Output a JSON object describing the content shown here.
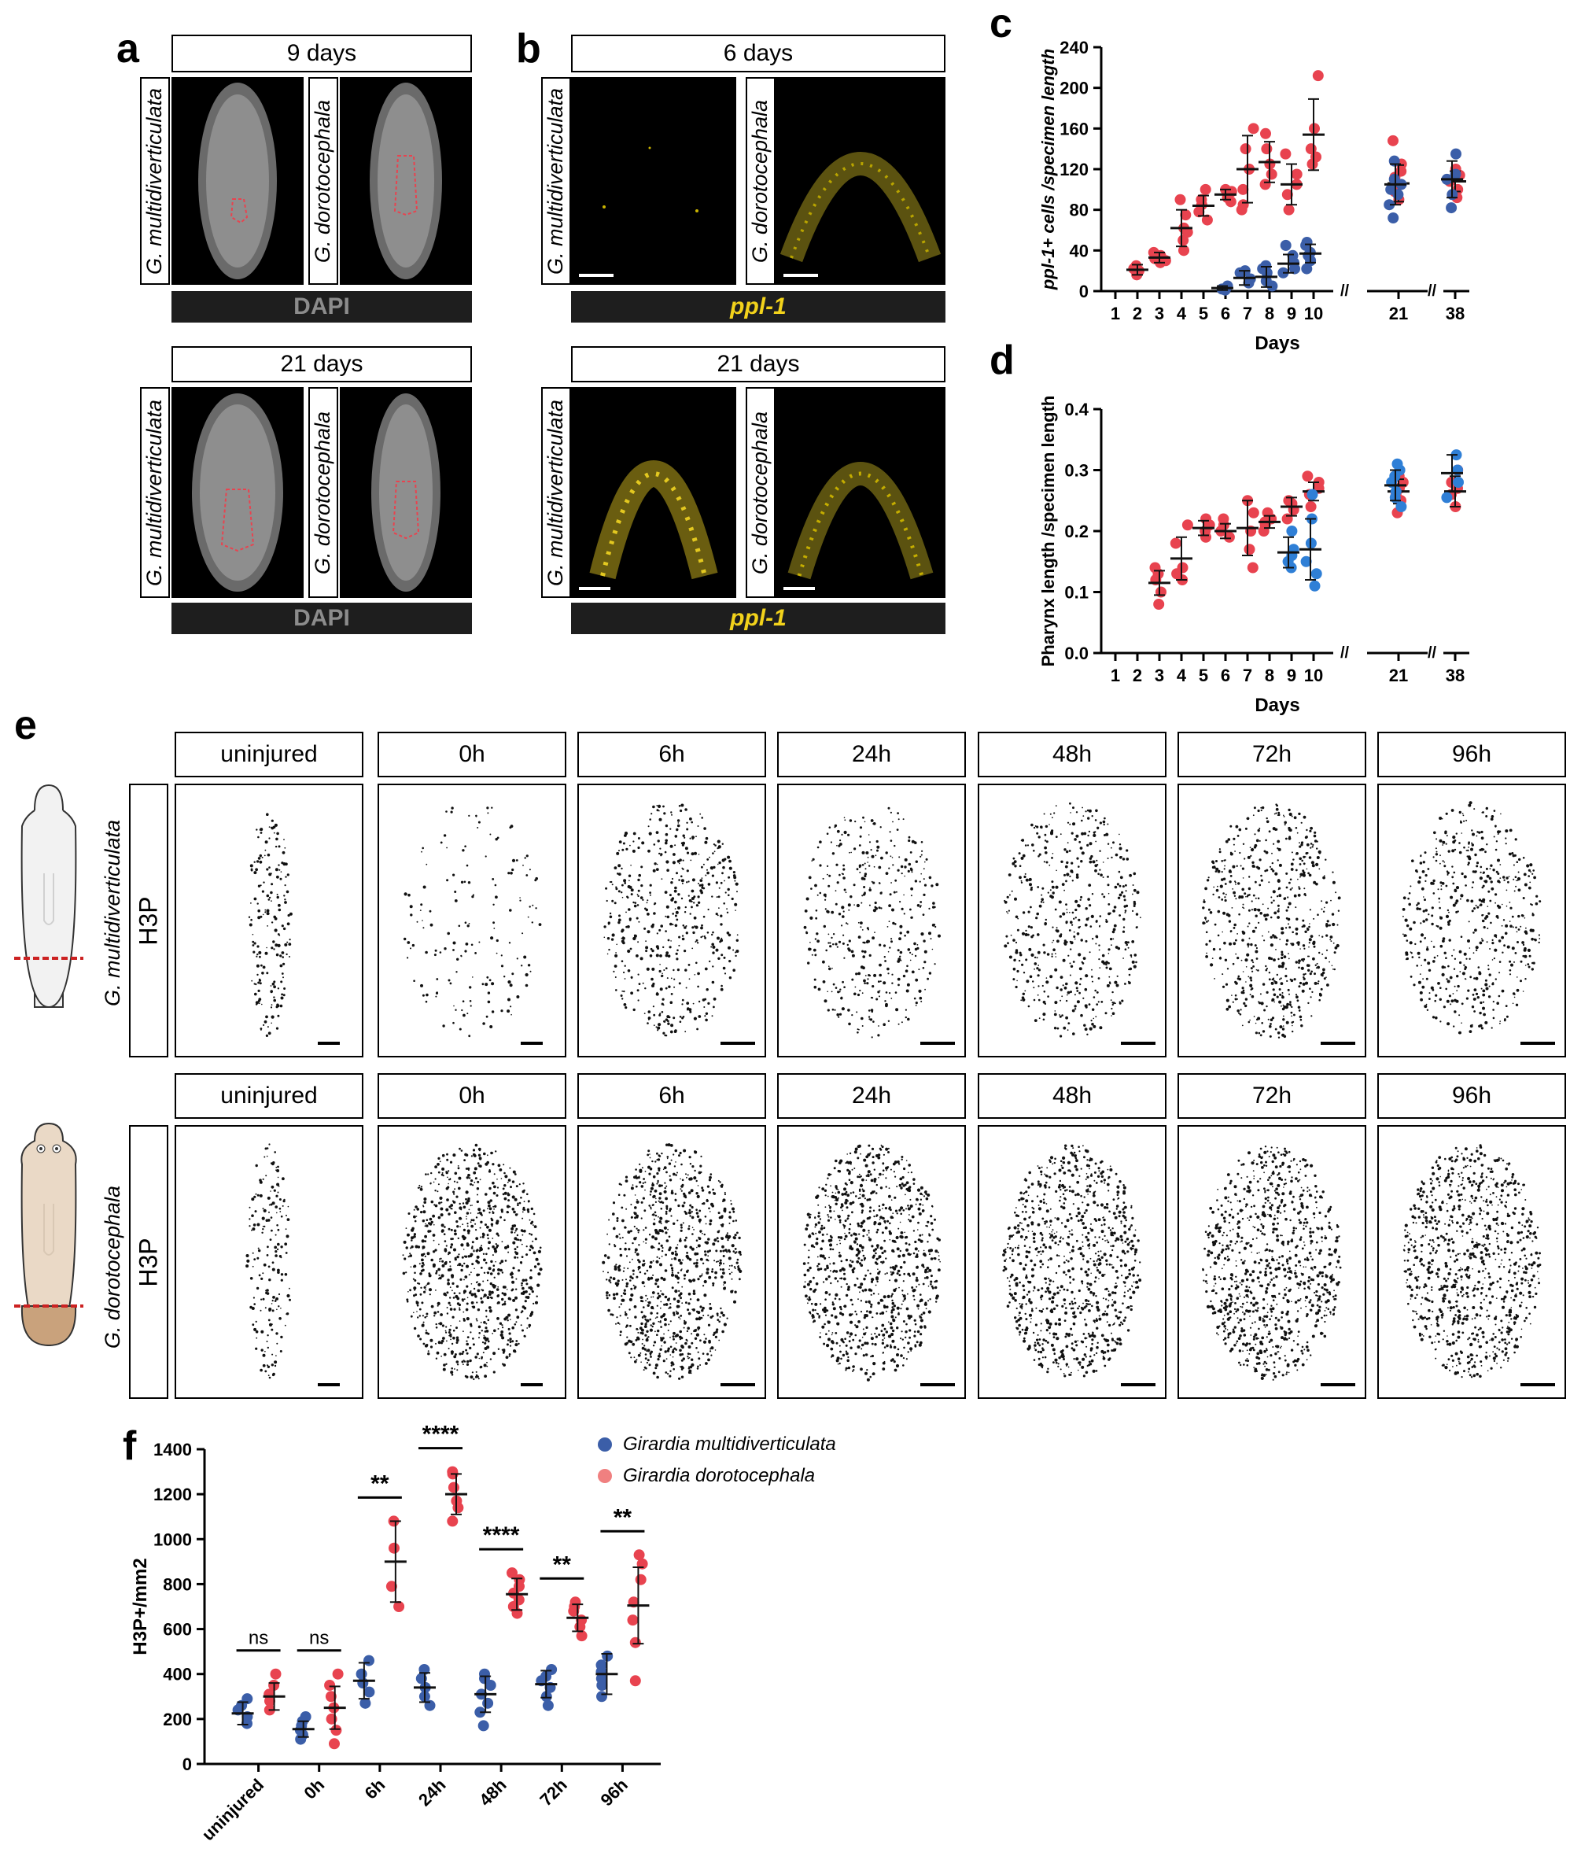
{
  "panels": {
    "a": {
      "letter": "a",
      "top_time": "9 days",
      "bottom_time": "21 days",
      "species_1": "G. multidiverticulata",
      "species_2": "G. dorotocephala",
      "stain": "DAPI"
    },
    "b": {
      "letter": "b",
      "top_time": "6 days",
      "bottom_time": "21 days",
      "species_1": "G. multidiverticulata",
      "species_2": "G. dorotocephala",
      "stain": "ppl-1"
    },
    "c": {
      "letter": "c"
    },
    "d": {
      "letter": "d"
    },
    "e": {
      "letter": "e",
      "timepoints": [
        "uninjured",
        "0h",
        "6h",
        "24h",
        "48h",
        "72h",
        "96h"
      ],
      "stain": "H3P",
      "species_1": "G. multidiverticulata",
      "species_2": "G. dorotocephala"
    },
    "f": {
      "letter": "f"
    }
  },
  "colors": {
    "g_multi": "#3b5ea8",
    "g_multi_light": "#2f7fd6",
    "g_doro": "#e8434f",
    "ppl_text": "#f2d21b",
    "dapi_text": "#8c8c8c"
  },
  "chart_data": [
    {
      "id": "c",
      "type": "scatter",
      "ylabel": "ppl-1+ cells /specimen length",
      "xlabel": "Days",
      "ylim": [
        0,
        240
      ],
      "yticks": [
        0,
        40,
        80,
        120,
        160,
        200,
        240
      ],
      "categories": [
        "1",
        "2",
        "3",
        "4",
        "5",
        "6",
        "7",
        "8",
        "9",
        "10",
        "21",
        "38"
      ],
      "series": [
        {
          "color": "#e8434f",
          "points": [
            {
              "x": "2",
              "vals": [
                16,
                20,
                22,
                25
              ],
              "mean": 21,
              "sd": 5
            },
            {
              "x": "3",
              "vals": [
                28,
                32,
                35,
                38,
                30
              ],
              "mean": 33,
              "sd": 5
            },
            {
              "x": "4",
              "vals": [
                40,
                50,
                58,
                62,
                75,
                90
              ],
              "mean": 62,
              "sd": 18
            },
            {
              "x": "5",
              "vals": [
                70,
                78,
                85,
                90,
                100
              ],
              "mean": 84,
              "sd": 10
            },
            {
              "x": "6",
              "vals": [
                88,
                92,
                95,
                98,
                100
              ],
              "mean": 95,
              "sd": 5
            },
            {
              "x": "7",
              "vals": [
                80,
                85,
                100,
                120,
                140,
                160
              ],
              "mean": 120,
              "sd": 33
            },
            {
              "x": "8",
              "vals": [
                105,
                115,
                125,
                140,
                155
              ],
              "mean": 127,
              "sd": 20
            },
            {
              "x": "9",
              "vals": [
                80,
                95,
                105,
                115,
                135
              ],
              "mean": 105,
              "sd": 20
            },
            {
              "x": "10",
              "vals": [
                125,
                132,
                140,
                160,
                212
              ],
              "mean": 154,
              "sd": 35
            },
            {
              "x": "21",
              "vals": [
                90,
                98,
                105,
                112,
                118,
                125,
                148
              ],
              "mean": 106,
              "sd": 18
            },
            {
              "x": "38",
              "vals": [
                92,
                100,
                108,
                114,
                120
              ],
              "mean": 108,
              "sd": 10
            }
          ]
        },
        {
          "color": "#3b5ea8",
          "points": [
            {
              "x": "6",
              "vals": [
                1,
                2,
                3,
                5
              ],
              "mean": 3,
              "sd": 2
            },
            {
              "x": "7",
              "vals": [
                8,
                12,
                18,
                20
              ],
              "mean": 13,
              "sd": 7
            },
            {
              "x": "8",
              "vals": [
                5,
                10,
                18,
                22,
                25
              ],
              "mean": 14,
              "sd": 10
            },
            {
              "x": "9",
              "vals": [
                18,
                22,
                28,
                35,
                45
              ],
              "mean": 27,
              "sd": 9
            },
            {
              "x": "10",
              "vals": [
                22,
                30,
                35,
                38,
                45,
                48
              ],
              "mean": 37,
              "sd": 9
            },
            {
              "x": "21",
              "vals": [
                72,
                85,
                95,
                100,
                105,
                110,
                128
              ],
              "mean": 105,
              "sd": 20
            },
            {
              "x": "38",
              "vals": [
                82,
                95,
                110,
                115,
                135
              ],
              "mean": 110,
              "sd": 18
            }
          ]
        }
      ]
    },
    {
      "id": "d",
      "type": "scatter",
      "ylabel": "Pharynx length /specimen length",
      "xlabel": "Days",
      "ylim": [
        0,
        0.4
      ],
      "yticks": [
        "0.0",
        "0.1",
        "0.2",
        "0.3",
        "0.4"
      ],
      "categories": [
        "1",
        "2",
        "3",
        "4",
        "5",
        "6",
        "7",
        "8",
        "9",
        "10",
        "21",
        "38"
      ],
      "series": [
        {
          "color": "#e8434f",
          "points": [
            {
              "x": "3",
              "vals": [
                0.08,
                0.1,
                0.12,
                0.13,
                0.14
              ],
              "mean": 0.115,
              "sd": 0.02
            },
            {
              "x": "4",
              "vals": [
                0.12,
                0.13,
                0.14,
                0.18,
                0.21
              ],
              "mean": 0.155,
              "sd": 0.035
            },
            {
              "x": "5",
              "vals": [
                0.19,
                0.2,
                0.21,
                0.22
              ],
              "mean": 0.205,
              "sd": 0.012
            },
            {
              "x": "6",
              "vals": [
                0.19,
                0.2,
                0.21,
                0.22
              ],
              "mean": 0.2,
              "sd": 0.012
            },
            {
              "x": "7",
              "vals": [
                0.14,
                0.17,
                0.2,
                0.23,
                0.25
              ],
              "mean": 0.205,
              "sd": 0.045
            },
            {
              "x": "8",
              "vals": [
                0.2,
                0.21,
                0.215,
                0.22,
                0.23
              ],
              "mean": 0.215,
              "sd": 0.01
            },
            {
              "x": "9",
              "vals": [
                0.22,
                0.235,
                0.245,
                0.25
              ],
              "mean": 0.24,
              "sd": 0.015
            },
            {
              "x": "10",
              "vals": [
                0.24,
                0.26,
                0.27,
                0.28,
                0.29
              ],
              "mean": 0.265,
              "sd": 0.015
            },
            {
              "x": "21",
              "vals": [
                0.23,
                0.25,
                0.26,
                0.27,
                0.28,
                0.29
              ],
              "mean": 0.265,
              "sd": 0.02
            },
            {
              "x": "38",
              "vals": [
                0.24,
                0.26,
                0.27,
                0.28,
                0.3
              ],
              "mean": 0.265,
              "sd": 0.025
            }
          ]
        },
        {
          "color": "#2f7fd6",
          "points": [
            {
              "x": "9",
              "vals": [
                0.14,
                0.15,
                0.16,
                0.17,
                0.2
              ],
              "mean": 0.165,
              "sd": 0.025
            },
            {
              "x": "10",
              "vals": [
                0.11,
                0.13,
                0.15,
                0.18,
                0.22,
                0.26
              ],
              "mean": 0.17,
              "sd": 0.05
            },
            {
              "x": "21",
              "vals": [
                0.24,
                0.255,
                0.265,
                0.28,
                0.29,
                0.3,
                0.31
              ],
              "mean": 0.275,
              "sd": 0.025
            },
            {
              "x": "38",
              "vals": [
                0.255,
                0.28,
                0.3,
                0.325
              ],
              "mean": 0.295,
              "sd": 0.03
            }
          ]
        }
      ]
    },
    {
      "id": "f",
      "type": "scatter",
      "ylabel": "H3P+/mm2",
      "ylim": [
        0,
        1400
      ],
      "yticks": [
        0,
        200,
        400,
        600,
        800,
        1000,
        1200,
        1400
      ],
      "categories": [
        "uninjured",
        "0h",
        "6h",
        "24h",
        "48h",
        "72h",
        "96h"
      ],
      "significance": [
        "ns",
        "ns",
        "**",
        "****",
        "****",
        "**",
        "**"
      ],
      "legend": [
        "Girardia multidiverticulata",
        "Girardia dorotocephala"
      ],
      "series": [
        {
          "name": "Girardia multidiverticulata",
          "color": "#3b5ea8",
          "points": [
            {
              "x": "uninjured",
              "vals": [
                180,
                210,
                240,
                260,
                290
              ],
              "mean": 225,
              "sd": 50
            },
            {
              "x": "0h",
              "vals": [
                110,
                130,
                150,
                170,
                190,
                210
              ],
              "mean": 155,
              "sd": 35
            },
            {
              "x": "6h",
              "vals": [
                270,
                320,
                360,
                400,
                460
              ],
              "mean": 370,
              "sd": 80
            },
            {
              "x": "24h",
              "vals": [
                260,
                300,
                340,
                380,
                420
              ],
              "mean": 340,
              "sd": 65
            },
            {
              "x": "48h",
              "vals": [
                170,
                230,
                270,
                310,
                350,
                380,
                400
              ],
              "mean": 310,
              "sd": 80
            },
            {
              "x": "72h",
              "vals": [
                260,
                300,
                340,
                370,
                390,
                420
              ],
              "mean": 355,
              "sd": 60
            },
            {
              "x": "96h",
              "vals": [
                300,
                350,
                380,
                410,
                440,
                480
              ],
              "mean": 400,
              "sd": 90
            }
          ]
        },
        {
          "name": "Girardia dorotocephala",
          "color": "#e8434f",
          "points": [
            {
              "x": "uninjured",
              "vals": [
                240,
                280,
                310,
                350,
                400
              ],
              "mean": 300,
              "sd": 60
            },
            {
              "x": "0h",
              "vals": [
                90,
                150,
                200,
                250,
                300,
                350,
                400
              ],
              "mean": 250,
              "sd": 95
            },
            {
              "x": "6h",
              "vals": [
                700,
                790,
                960,
                1080
              ],
              "mean": 900,
              "sd": 180
            },
            {
              "x": "24h",
              "vals": [
                1080,
                1140,
                1170,
                1230,
                1290,
                1300
              ],
              "mean": 1200,
              "sd": 90
            },
            {
              "x": "48h",
              "vals": [
                670,
                700,
                730,
                760,
                790,
                820,
                850
              ],
              "mean": 755,
              "sd": 70
            },
            {
              "x": "72h",
              "vals": [
                570,
                610,
                640,
                680,
                700,
                720
              ],
              "mean": 650,
              "sd": 60
            },
            {
              "x": "96h",
              "vals": [
                370,
                540,
                640,
                720,
                820,
                890,
                930
              ],
              "mean": 705,
              "sd": 170
            }
          ]
        }
      ]
    }
  ]
}
